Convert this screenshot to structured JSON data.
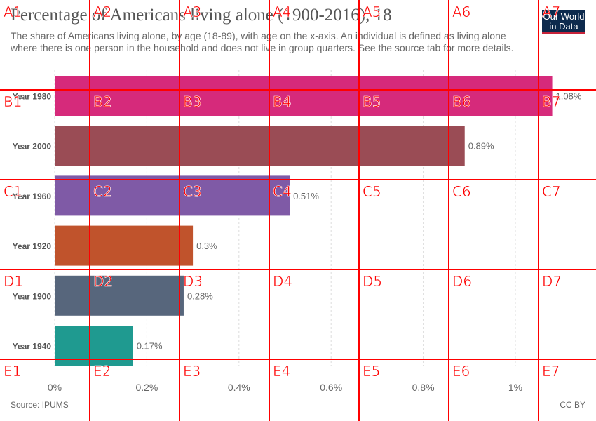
{
  "header": {
    "title": "Percentage of Americans living alone (1900-2016), 18",
    "subtitle": "The share of Americans living alone, by age (18-89), with age on the x-axis. An individual is defined as living alone where there is one person in the household and does not live in group quarters. See the source tab for more details.",
    "logo_line1": "Our World",
    "logo_line2": "in Data"
  },
  "footer": {
    "source": "Source: IPUMS",
    "license": "CC BY"
  },
  "chart_data": {
    "type": "bar",
    "orientation": "horizontal",
    "categories": [
      "Year 1980",
      "Year 2000",
      "Year 1960",
      "Year 1920",
      "Year 1900",
      "Year 1940"
    ],
    "values": [
      1.08,
      0.89,
      0.51,
      0.3,
      0.28,
      0.17
    ],
    "value_labels": [
      "1.08%",
      "0.89%",
      "0.51%",
      "0.3%",
      "0.28%",
      "0.17%"
    ],
    "colors": [
      "#d62a7b",
      "#9a4c55",
      "#7f5aa6",
      "#c0532c",
      "#57667c",
      "#1f9a90"
    ],
    "xlim": [
      0,
      1.1
    ],
    "x_ticks": [
      0,
      0.2,
      0.4,
      0.6,
      0.8,
      1.0
    ],
    "x_tick_labels": [
      "0%",
      "0.2%",
      "0.4%",
      "0.6%",
      "0.8%",
      "1%"
    ],
    "grid": true
  },
  "overlay": {
    "color": "#ff0000",
    "labels": [
      "A1",
      "A2",
      "A3",
      "A4",
      "A5",
      "A6",
      "A7",
      "B1",
      "B2",
      "B3",
      "B4",
      "B5",
      "B6",
      "B7",
      "C1",
      "C2",
      "C3",
      "C4",
      "C5",
      "C6",
      "C7",
      "D1",
      "D2",
      "D3",
      "D4",
      "D5",
      "D6",
      "D7",
      "E1",
      "E2",
      "E3",
      "E4",
      "E5",
      "E6",
      "E7"
    ]
  }
}
